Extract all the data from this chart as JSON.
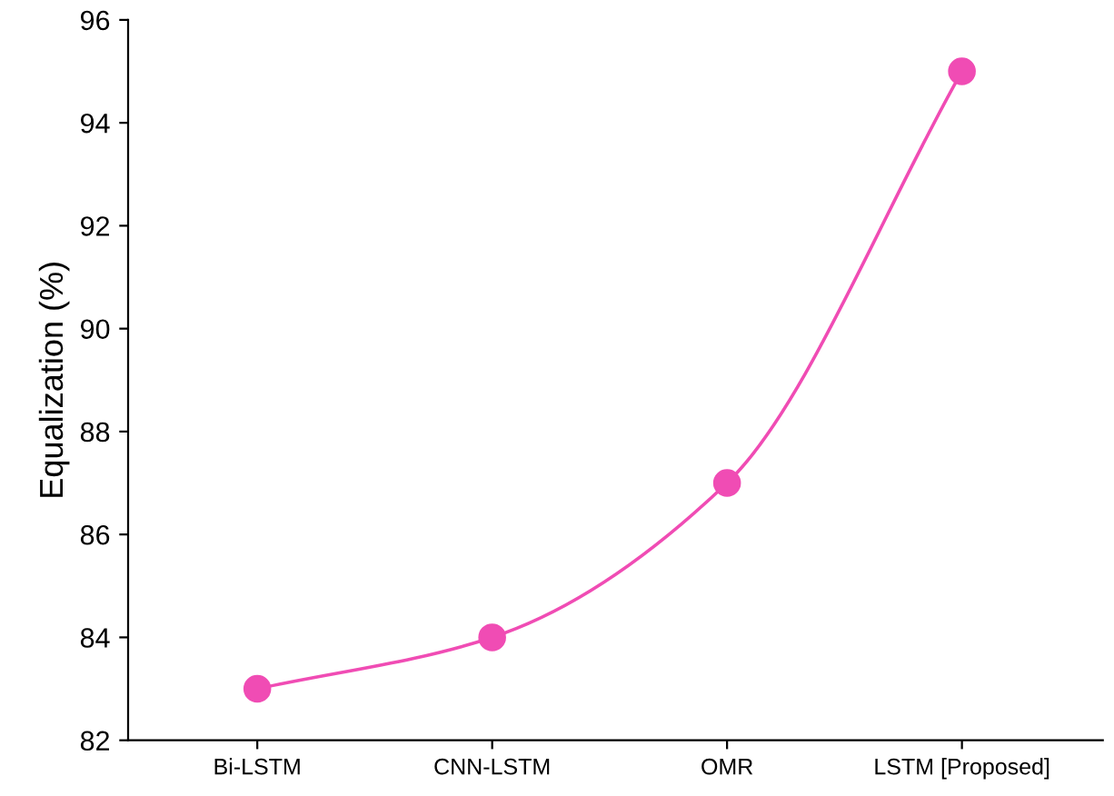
{
  "chart_data": {
    "type": "line",
    "ylabel": "Equalization (%)",
    "categories": [
      "Bi-LSTM",
      "CNN-LSTM",
      "OMR",
      "LSTM [Proposed]"
    ],
    "series": [
      {
        "color": "#f04cb4",
        "values": [
          83,
          84,
          87,
          95
        ]
      }
    ],
    "ylim": [
      82,
      96
    ],
    "yticks": [
      82,
      84,
      86,
      88,
      90,
      92,
      94,
      96
    ],
    "marker": "circle",
    "line_style": "solid",
    "grid": false
  }
}
